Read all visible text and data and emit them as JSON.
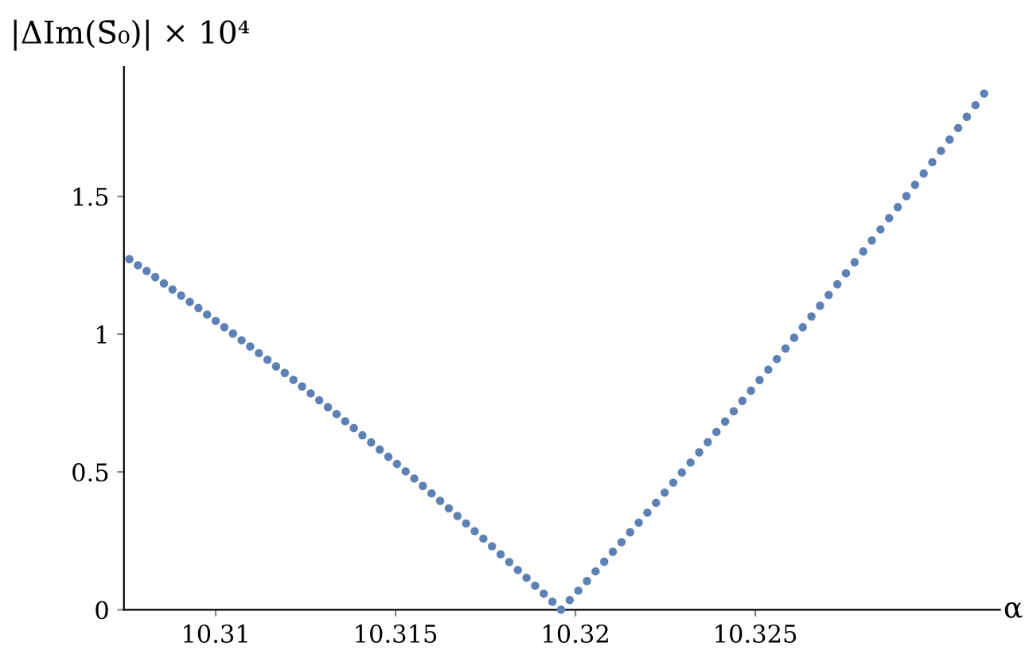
{
  "chart_data": {
    "type": "scatter",
    "ylabel": "|ΔIm(S̄₀)| × 10⁴",
    "xlabel": "α",
    "x": [
      10.3076,
      10.30784,
      10.30808,
      10.30832,
      10.30856,
      10.3088,
      10.30904,
      10.30928,
      10.30952,
      10.30976,
      10.31,
      10.31024,
      10.31048,
      10.31072,
      10.31096,
      10.3112,
      10.31144,
      10.31168,
      10.31192,
      10.31216,
      10.3124,
      10.31264,
      10.31288,
      10.31312,
      10.31336,
      10.3136,
      10.31384,
      10.31408,
      10.31432,
      10.31456,
      10.3148,
      10.31504,
      10.31528,
      10.31552,
      10.31576,
      10.316,
      10.31624,
      10.31648,
      10.31672,
      10.31696,
      10.3172,
      10.31744,
      10.31768,
      10.31792,
      10.31816,
      10.3184,
      10.31864,
      10.31888,
      10.31912,
      10.31936,
      10.3196,
      10.31984,
      10.32008,
      10.32032,
      10.32056,
      10.3208,
      10.32104,
      10.32128,
      10.32152,
      10.32176,
      10.322,
      10.32224,
      10.32248,
      10.32272,
      10.32296,
      10.3232,
      10.32344,
      10.32368,
      10.32392,
      10.32416,
      10.3244,
      10.32464,
      10.32488,
      10.32512,
      10.32536,
      10.3256,
      10.32584,
      10.32608,
      10.32632,
      10.32656,
      10.3268,
      10.32704,
      10.32728,
      10.32752,
      10.32776,
      10.328,
      10.32824,
      10.32848,
      10.32872,
      10.32896,
      10.3292,
      10.32944,
      10.32968,
      10.32992,
      10.33016,
      10.3304,
      10.33064,
      10.33088,
      10.33112,
      10.33136
    ],
    "series": [
      {
        "color": "#5e81b5",
        "values": [
          1.272,
          1.25,
          1.229,
          1.207,
          1.184,
          1.162,
          1.14,
          1.117,
          1.095,
          1.071,
          1.048,
          1.025,
          1.002,
          0.978,
          0.955,
          0.931,
          0.907,
          0.883,
          0.859,
          0.834,
          0.81,
          0.785,
          0.76,
          0.735,
          0.71,
          0.684,
          0.659,
          0.633,
          0.607,
          0.581,
          0.555,
          0.529,
          0.502,
          0.476,
          0.449,
          0.422,
          0.395,
          0.368,
          0.34,
          0.313,
          0.285,
          0.258,
          0.23,
          0.201,
          0.173,
          0.144,
          0.116,
          0.087,
          0.058,
          0.029,
          0.0,
          0.035,
          0.069,
          0.104,
          0.139,
          0.174,
          0.21,
          0.245,
          0.281,
          0.316,
          0.352,
          0.388,
          0.425,
          0.461,
          0.498,
          0.534,
          0.571,
          0.608,
          0.645,
          0.683,
          0.72,
          0.758,
          0.795,
          0.833,
          0.871,
          0.91,
          0.948,
          0.987,
          1.025,
          1.064,
          1.103,
          1.142,
          1.181,
          1.221,
          1.261,
          1.3,
          1.34,
          1.38,
          1.421,
          1.461,
          1.501,
          1.542,
          1.583,
          1.624,
          1.665,
          1.706,
          1.748,
          1.789,
          1.831,
          1.873
        ]
      }
    ],
    "xlim": [
      10.30745,
      10.3318
    ],
    "ylim": [
      0,
      1.97
    ],
    "xticks": [
      10.31,
      10.315,
      10.32,
      10.325
    ],
    "yticks": [
      0,
      0.5,
      1,
      1.5
    ],
    "grid": false,
    "legend": false,
    "marker": "circle"
  }
}
